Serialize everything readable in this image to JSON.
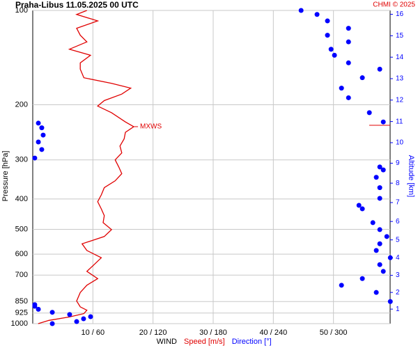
{
  "chart_data": {
    "type": "profile",
    "title": "Praha-Libus   11.05.2025 00 UTC",
    "credit": "CHMI © 2025",
    "ylabel": "Pressure [hPa]",
    "y2label": "Altitude [km]",
    "xlabel": "WIND",
    "annotation": "MXWS",
    "log_y": true,
    "grid": true,
    "ylim": [
      100,
      1000
    ],
    "yticks": [
      100,
      200,
      300,
      400,
      500,
      600,
      700,
      850,
      925,
      1000
    ],
    "xlim": [
      0,
      60
    ],
    "xticks": [
      {
        "value": 10,
        "label": "10 / 60"
      },
      {
        "value": 20,
        "label": "20 / 120"
      },
      {
        "value": 30,
        "label": "30 / 180"
      },
      {
        "value": 40,
        "label": "40 / 240"
      },
      {
        "value": 50,
        "label": "50 / 300"
      }
    ],
    "y2ticks": [
      1,
      2,
      3,
      4,
      5,
      6,
      7,
      8,
      9,
      10,
      11,
      12,
      13,
      14,
      15,
      16
    ],
    "series": [
      {
        "name": "Speed [m/s]",
        "color": "#e00000",
        "style": "line",
        "pressure": [
          1000,
          976,
          952,
          929,
          906,
          884,
          847,
          795,
          754,
          718,
          681,
          648,
          616,
          584,
          556,
          527,
          501,
          476,
          452,
          430,
          408,
          388,
          368,
          350,
          332,
          316,
          300,
          285,
          271,
          257,
          245,
          235,
          227,
          212,
          202,
          194,
          185,
          177,
          171,
          164,
          154,
          147,
          139,
          133,
          126,
          120,
          114,
          108,
          103,
          100
        ],
        "values": [
          0.9,
          2.7,
          6.1,
          8.5,
          9,
          7.9,
          7.3,
          7.9,
          9,
          10.8,
          9,
          10.2,
          11.4,
          9,
          8.2,
          11.9,
          13.1,
          11.7,
          11.9,
          11.4,
          10.8,
          11.4,
          11.9,
          13.7,
          14.8,
          14.3,
          13.7,
          14.8,
          14.5,
          15.2,
          15.4,
          16.8,
          15.4,
          13.1,
          10.8,
          11.9,
          14.8,
          16.3,
          13.1,
          8.5,
          7.9,
          7.9,
          9.6,
          6.1,
          9,
          7.9,
          7.3,
          10.8,
          7.3,
          9
        ]
      },
      {
        "name": "Direction [°]",
        "color": "#0000ff",
        "style": "points",
        "scale": 6,
        "pressure": [
          1000,
          985,
          965,
          950,
          935,
          920,
          900,
          880,
          870,
          850,
          795,
          754,
          718,
          681,
          648,
          616,
          584,
          556,
          527,
          501,
          476,
          430,
          419,
          398,
          368,
          341,
          323,
          316,
          296,
          278,
          263,
          250,
          237,
          229,
          227,
          212,
          190,
          177,
          164,
          154,
          147,
          139,
          133,
          126,
          120,
          114,
          108,
          103,
          100
        ],
        "values": [
          19.5,
          43.8,
          50.7,
          57.7,
          36.8,
          19.5,
          5.6,
          2,
          2,
          356.7,
          342.7,
          308,
          328.8,
          349.7,
          346.2,
          356.7,
          342.7,
          346.2,
          353.2,
          346.2,
          339.3,
          328.8,
          325.4,
          346.2,
          346.2,
          342.7,
          349.7,
          346.2,
          2,
          9,
          5.6,
          10.4,
          9,
          5.6,
          349.7,
          335.8,
          315,
          308,
          328.8,
          346.2,
          315,
          301,
          297.6,
          315,
          294,
          315,
          294,
          283.6,
          267.7
        ]
      }
    ]
  }
}
